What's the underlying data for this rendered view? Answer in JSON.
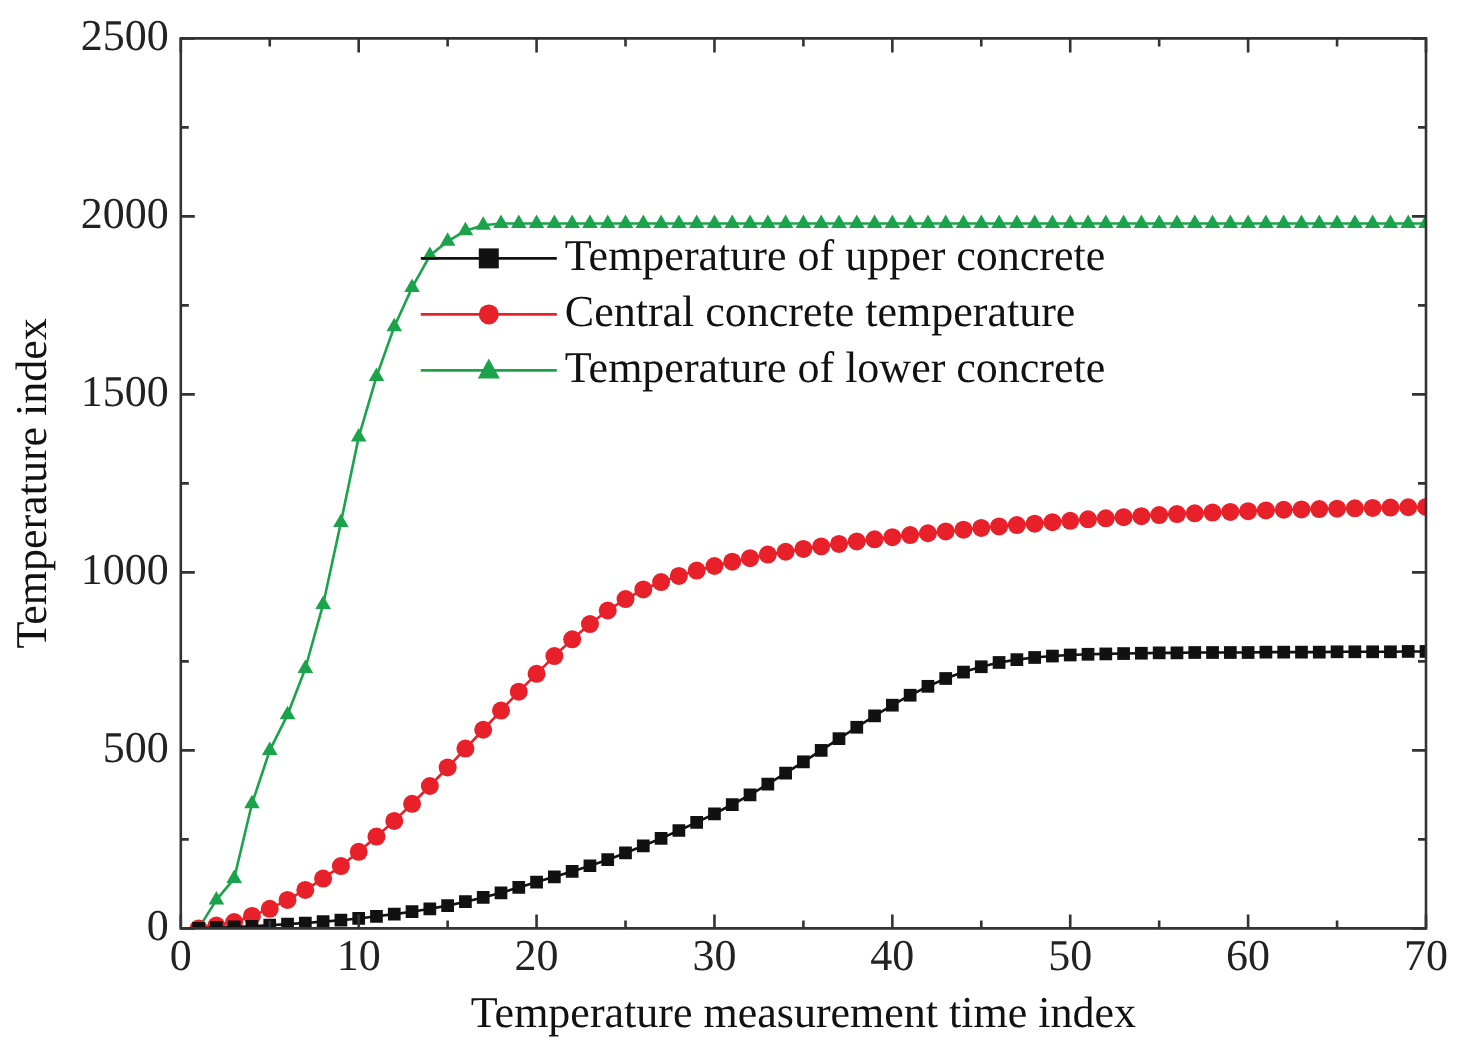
{
  "chart_data": {
    "type": "line",
    "xlabel": "Temperature measurement time index",
    "ylabel": "Temperature index",
    "x": [
      1,
      2,
      3,
      4,
      5,
      6,
      7,
      8,
      9,
      10,
      11,
      12,
      13,
      14,
      15,
      16,
      17,
      18,
      19,
      20,
      21,
      22,
      23,
      24,
      25,
      26,
      27,
      28,
      29,
      30,
      31,
      32,
      33,
      34,
      35,
      36,
      37,
      38,
      39,
      40,
      41,
      42,
      43,
      44,
      45,
      46,
      47,
      48,
      49,
      50,
      51,
      52,
      53,
      54,
      55,
      56,
      57,
      58,
      59,
      60,
      61,
      62,
      63,
      64,
      65,
      66,
      67,
      68,
      69,
      70
    ],
    "xlim": [
      0,
      70
    ],
    "xticks": [
      0,
      {
        "value": 5,
        "label": null
      },
      10,
      {
        "value": 15,
        "label": null
      },
      20,
      {
        "value": 25,
        "label": null
      },
      30,
      {
        "value": 35,
        "label": null
      },
      40,
      {
        "value": 45,
        "label": null
      },
      50,
      {
        "value": 55,
        "label": null
      },
      60,
      {
        "value": 65,
        "label": null
      },
      70
    ],
    "ylim": [
      0,
      2500
    ],
    "yticks": [
      0,
      {
        "value": 250,
        "label": null
      },
      500,
      {
        "value": 750,
        "label": null
      },
      1000,
      {
        "value": 1250,
        "label": null
      },
      1500,
      {
        "value": 1750,
        "label": null
      },
      2000,
      {
        "value": 2250,
        "label": null
      },
      2500
    ],
    "grid": false,
    "legend": "top",
    "line_style": "solid",
    "series": [
      {
        "name": "Temperature of upper concrete",
        "color": "#111111",
        "marker": "square",
        "values": [
          0,
          2,
          4,
          6,
          9,
          12,
          15,
          19,
          23,
          28,
          34,
          40,
          47,
          55,
          64,
          75,
          87,
          100,
          115,
          130,
          145,
          160,
          176,
          193,
          212,
          232,
          253,
          275,
          298,
          322,
          348,
          375,
          405,
          436,
          468,
          500,
          533,
          565,
          597,
          627,
          655,
          680,
          702,
          720,
          735,
          747,
          755,
          761,
          765,
          768,
          770,
          771,
          772,
          773,
          774,
          774,
          775,
          775,
          775,
          775,
          776,
          776,
          776,
          776,
          777,
          777,
          777,
          777,
          778,
          778
        ]
      },
      {
        "name": "Central concrete temperature",
        "color": "#e8202a",
        "marker": "circle",
        "values": [
          0,
          8,
          18,
          35,
          55,
          80,
          108,
          140,
          175,
          215,
          258,
          302,
          350,
          400,
          452,
          505,
          558,
          612,
          665,
          715,
          765,
          812,
          855,
          893,
          925,
          952,
          973,
          990,
          1005,
          1018,
          1030,
          1040,
          1050,
          1058,
          1066,
          1073,
          1080,
          1087,
          1093,
          1099,
          1105,
          1110,
          1115,
          1120,
          1125,
          1129,
          1133,
          1137,
          1141,
          1145,
          1149,
          1152,
          1155,
          1158,
          1161,
          1164,
          1166,
          1168,
          1170,
          1172,
          1174,
          1176,
          1177,
          1178,
          1179,
          1180,
          1181,
          1182,
          1183,
          1184
        ]
      },
      {
        "name": "Temperature of lower concrete",
        "color": "#1aa34a",
        "marker": "triangle",
        "values": [
          0,
          80,
          140,
          350,
          500,
          600,
          730,
          910,
          1140,
          1380,
          1550,
          1690,
          1800,
          1890,
          1930,
          1960,
          1975,
          1980,
          1980,
          1980,
          1980,
          1980,
          1980,
          1980,
          1980,
          1980,
          1980,
          1980,
          1980,
          1980,
          1980,
          1980,
          1980,
          1980,
          1980,
          1980,
          1980,
          1980,
          1980,
          1980,
          1980,
          1980,
          1980,
          1980,
          1980,
          1980,
          1980,
          1980,
          1980,
          1980,
          1980,
          1980,
          1980,
          1980,
          1980,
          1980,
          1980,
          1980,
          1980,
          1980,
          1980,
          1980,
          1980,
          1980,
          1980,
          1980,
          1980,
          1980,
          1980,
          1980
        ]
      }
    ]
  }
}
